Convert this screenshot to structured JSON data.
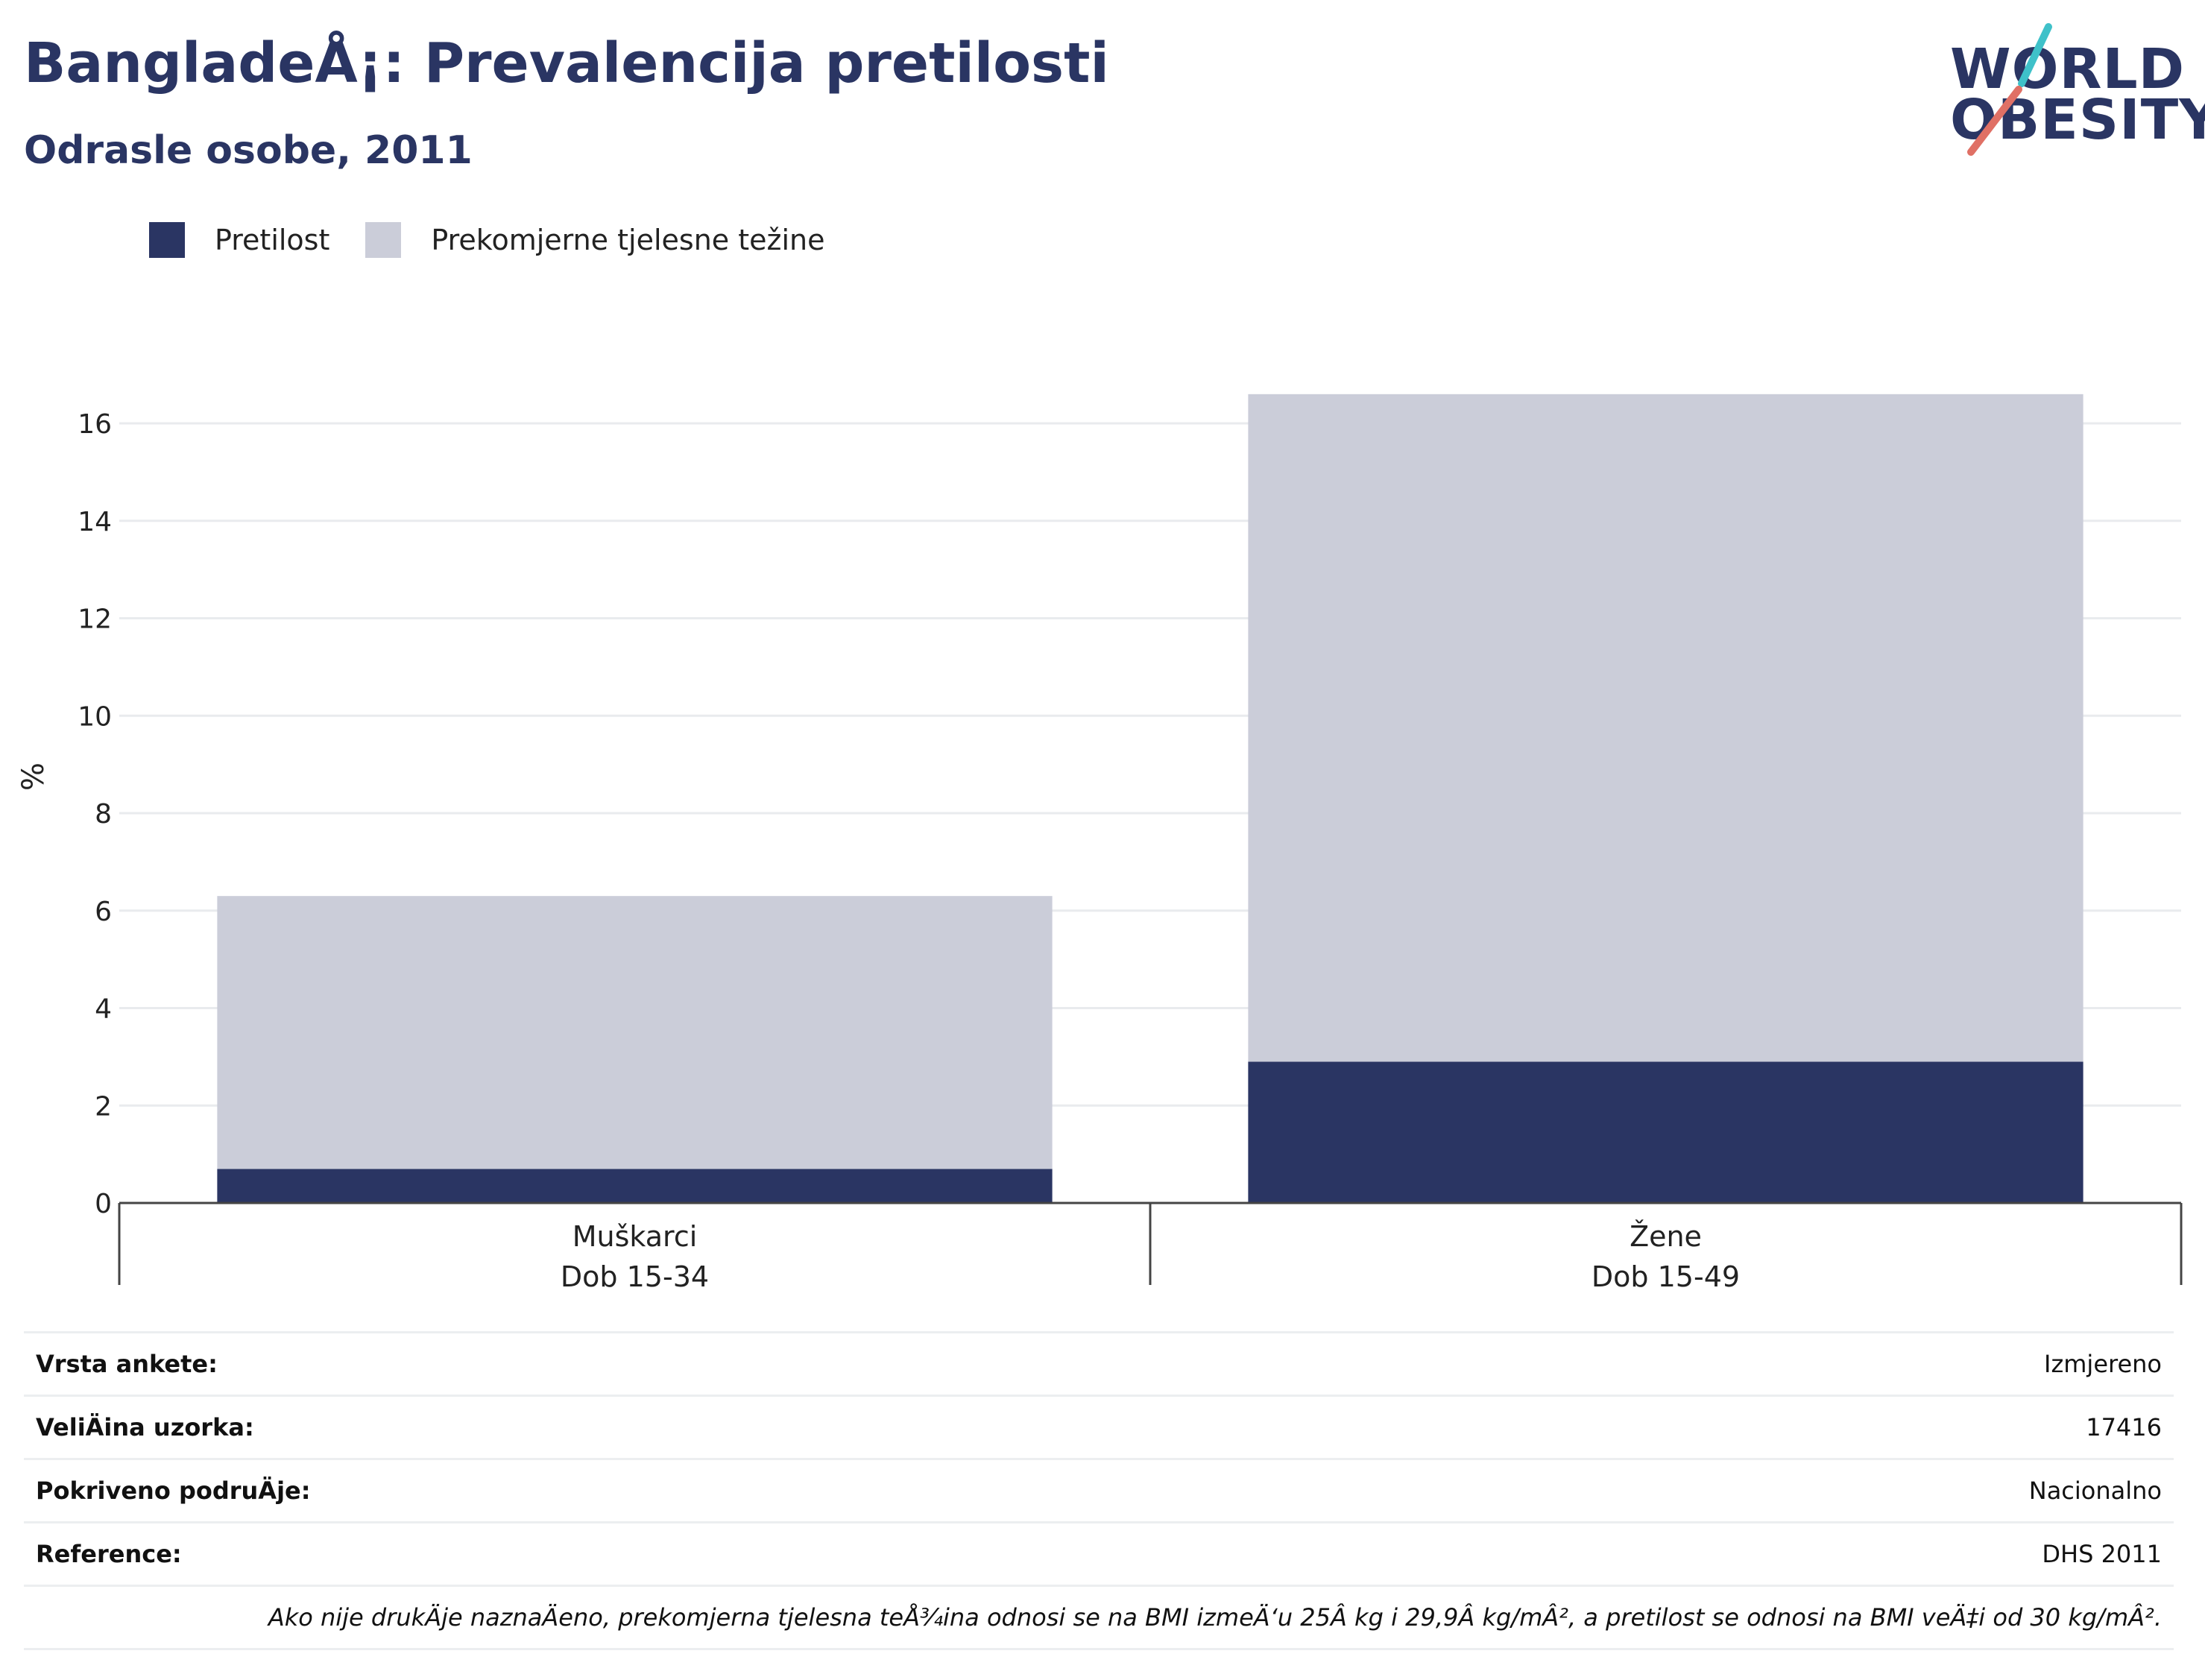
{
  "header": {
    "title": "BangladeÅ¡: Prevalencija pretilosti",
    "subtitle": "Odrasle osobe, 2011"
  },
  "logo": {
    "line1": "WORLD",
    "line2": "OBESITY",
    "colors": {
      "text": "#2a3563",
      "slash_top": "#3fc1c9",
      "slash_bottom": "#e07065"
    }
  },
  "colors": {
    "obesity": "#2a3563",
    "overweight": "#cbcdd9",
    "grid": "#e9ebee",
    "axis": "#444444"
  },
  "chart_data": {
    "type": "bar",
    "stacked": true,
    "ylabel": "%",
    "xlabel": "",
    "ylim": [
      0,
      17.5
    ],
    "yticks": [
      0,
      2,
      4,
      6,
      8,
      10,
      12,
      14,
      16
    ],
    "grid": true,
    "legend_position": "top-left",
    "categories": [
      {
        "line1": "Muškarci",
        "line2": "Dob 15-34"
      },
      {
        "line1": "Žene",
        "line2": "Dob 15-49"
      }
    ],
    "series": [
      {
        "name": "Pretilost",
        "values": [
          0.7,
          2.9
        ]
      },
      {
        "name": "Prekomjerne tjelesne težine",
        "values": [
          5.6,
          13.7
        ]
      }
    ]
  },
  "info": {
    "rows": [
      {
        "label": "Vrsta ankete:",
        "value": "Izmjereno"
      },
      {
        "label": "VeliÄ\u001fina uzorka:",
        "value": "17416"
      },
      {
        "label": "Pokriveno podruÄ\u001fje:",
        "value": "Nacionalno"
      },
      {
        "label": "Reference:",
        "value": "DHS 2011"
      }
    ],
    "footnote": "Ako nije drukÄ\u001fje naznaÄ\u001feno, prekomjerna tjelesna teÅ¾ina odnosi se na BMI izmeÄ‘u 25Â kg i 29,9Â kg/mÂ², a pretilost se odnosi na BMI veÄ‡i od 30 kg/mÂ²."
  }
}
